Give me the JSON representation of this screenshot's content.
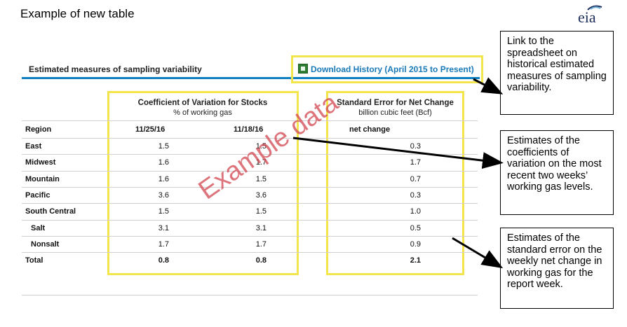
{
  "page_title": "Example of new table",
  "logo_text": "eia",
  "section_title": "Estimated measures of sampling variability",
  "download_label": "Download History (April 2015 to Present)",
  "cv_header": {
    "title": "Coefficient of Variation for Stocks",
    "subtitle": "% of working gas"
  },
  "se_header": {
    "title": "Standard Error for Net Change",
    "subtitle": "billion cubic feet (Bcf)"
  },
  "columns": {
    "region": "Region",
    "date1": "11/25/16",
    "date2": "11/18/16",
    "net": "net change"
  },
  "rows": [
    {
      "region": "East",
      "v1": "1.5",
      "v2": "1.5",
      "net": "0.3"
    },
    {
      "region": "Midwest",
      "v1": "1.6",
      "v2": "1.7",
      "net": "1.7"
    },
    {
      "region": "Mountain",
      "v1": "1.6",
      "v2": "1.5",
      "net": "0.7"
    },
    {
      "region": "Pacific",
      "v1": "3.6",
      "v2": "3.6",
      "net": "0.3"
    },
    {
      "region": "South Central",
      "v1": "1.5",
      "v2": "1.5",
      "net": "1.0"
    },
    {
      "region": "Salt",
      "v1": "3.1",
      "v2": "3.1",
      "net": "0.5"
    },
    {
      "region": "Nonsalt",
      "v1": "1.7",
      "v2": "1.7",
      "net": "0.9"
    },
    {
      "region": "Total",
      "v1": "0.8",
      "v2": "0.8",
      "net": "2.1"
    }
  ],
  "watermark": "Example data",
  "notes": {
    "link_note": "Link to the spreadsheet on historical estimated measures of sampling variability.",
    "cv_note": "Estimates of the coefficients of variation on the most recent two weeks’ working gas levels.",
    "se_note": "Estimates of the standard error on the weekly net change in working gas for the report week."
  },
  "colors": {
    "accent_blue": "#0f7fbf",
    "highlight_yellow": "#f5e54d",
    "link_blue": "#1a7ab7",
    "watermark_red": "#d24650"
  }
}
